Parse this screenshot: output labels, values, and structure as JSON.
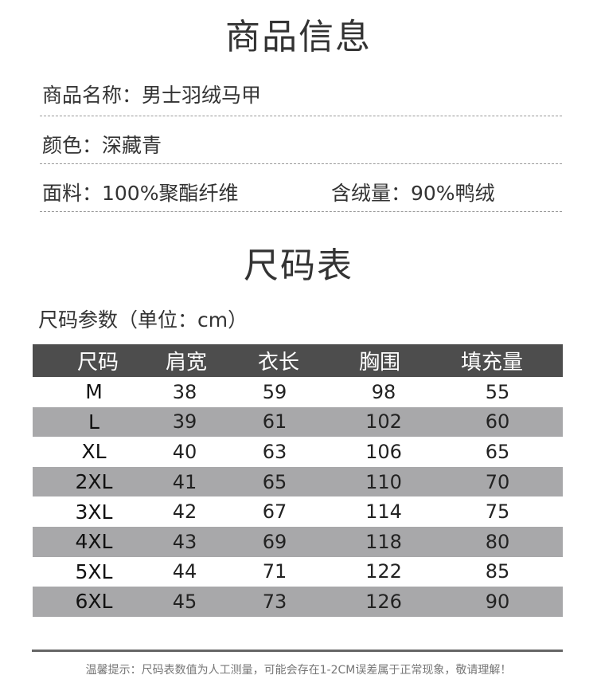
{
  "product_info": {
    "title": "商品信息",
    "name": "商品名称：男士羽绒马甲",
    "color": "颜色：深藏青",
    "fabric": "面料：100%聚酯纤维",
    "down_content": "含绒量：90%鸭绒"
  },
  "size_chart": {
    "title": "尺码表",
    "subtitle": "尺码参数（单位：cm）",
    "columns": [
      "尺码",
      "肩宽",
      "衣长",
      "胸围",
      "填充量"
    ],
    "rows": [
      [
        "M",
        "38",
        "59",
        "98",
        "55"
      ],
      [
        "L",
        "39",
        "61",
        "102",
        "60"
      ],
      [
        "XL",
        "40",
        "63",
        "106",
        "65"
      ],
      [
        "2XL",
        "41",
        "65",
        "110",
        "70"
      ],
      [
        "3XL",
        "42",
        "67",
        "114",
        "75"
      ],
      [
        "4XL",
        "43",
        "69",
        "118",
        "80"
      ],
      [
        "5XL",
        "44",
        "71",
        "122",
        "85"
      ],
      [
        "6XL",
        "45",
        "73",
        "126",
        "90"
      ]
    ]
  },
  "footer": {
    "note": "温馨提示：尺码表数值为人工测量，可能会存在1-2CM误差属于正常现象，敬请理解！"
  },
  "colors": {
    "header_bg": "#4d4d4d",
    "stripe_bg": "#a8a8aa"
  }
}
